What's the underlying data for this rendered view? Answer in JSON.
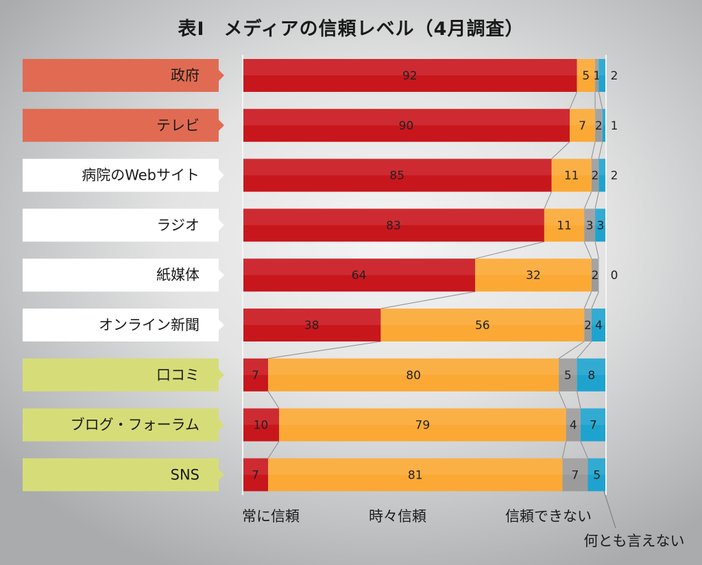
{
  "title": "表I　メディアの信頼レベル（4月調査）",
  "colors": {
    "always": "#c8161d",
    "sometimes": "#fba934",
    "never": "#9b9b9b",
    "undecided": "#1ea3cf",
    "label_red": "#e06b52",
    "label_white": "#ffffff",
    "label_green": "#d6dd78"
  },
  "chart_data": {
    "type": "bar",
    "orientation": "horizontal",
    "stacked": true,
    "title": "表I　メディアの信頼レベル（4月調査）",
    "categories": [
      "政府",
      "テレビ",
      "病院のWebサイト",
      "ラジオ",
      "紙媒体",
      "オンライン新聞",
      "口コミ",
      "ブログ・フォーラム",
      "SNS"
    ],
    "label_groups": [
      "red",
      "red",
      "white",
      "white",
      "white",
      "white",
      "green",
      "green",
      "green"
    ],
    "series": [
      {
        "name": "常に信頼",
        "values": [
          92,
          90,
          85,
          83,
          64,
          38,
          7,
          10,
          7
        ]
      },
      {
        "name": "時々信頼",
        "values": [
          5,
          7,
          11,
          11,
          32,
          56,
          80,
          79,
          81
        ]
      },
      {
        "name": "信頼できない",
        "values": [
          1,
          2,
          2,
          3,
          2,
          2,
          5,
          4,
          7
        ]
      },
      {
        "name": "何とも言えない",
        "values": [
          2,
          1,
          2,
          3,
          0,
          4,
          8,
          7,
          5
        ]
      }
    ],
    "xlim": [
      0,
      100
    ]
  }
}
